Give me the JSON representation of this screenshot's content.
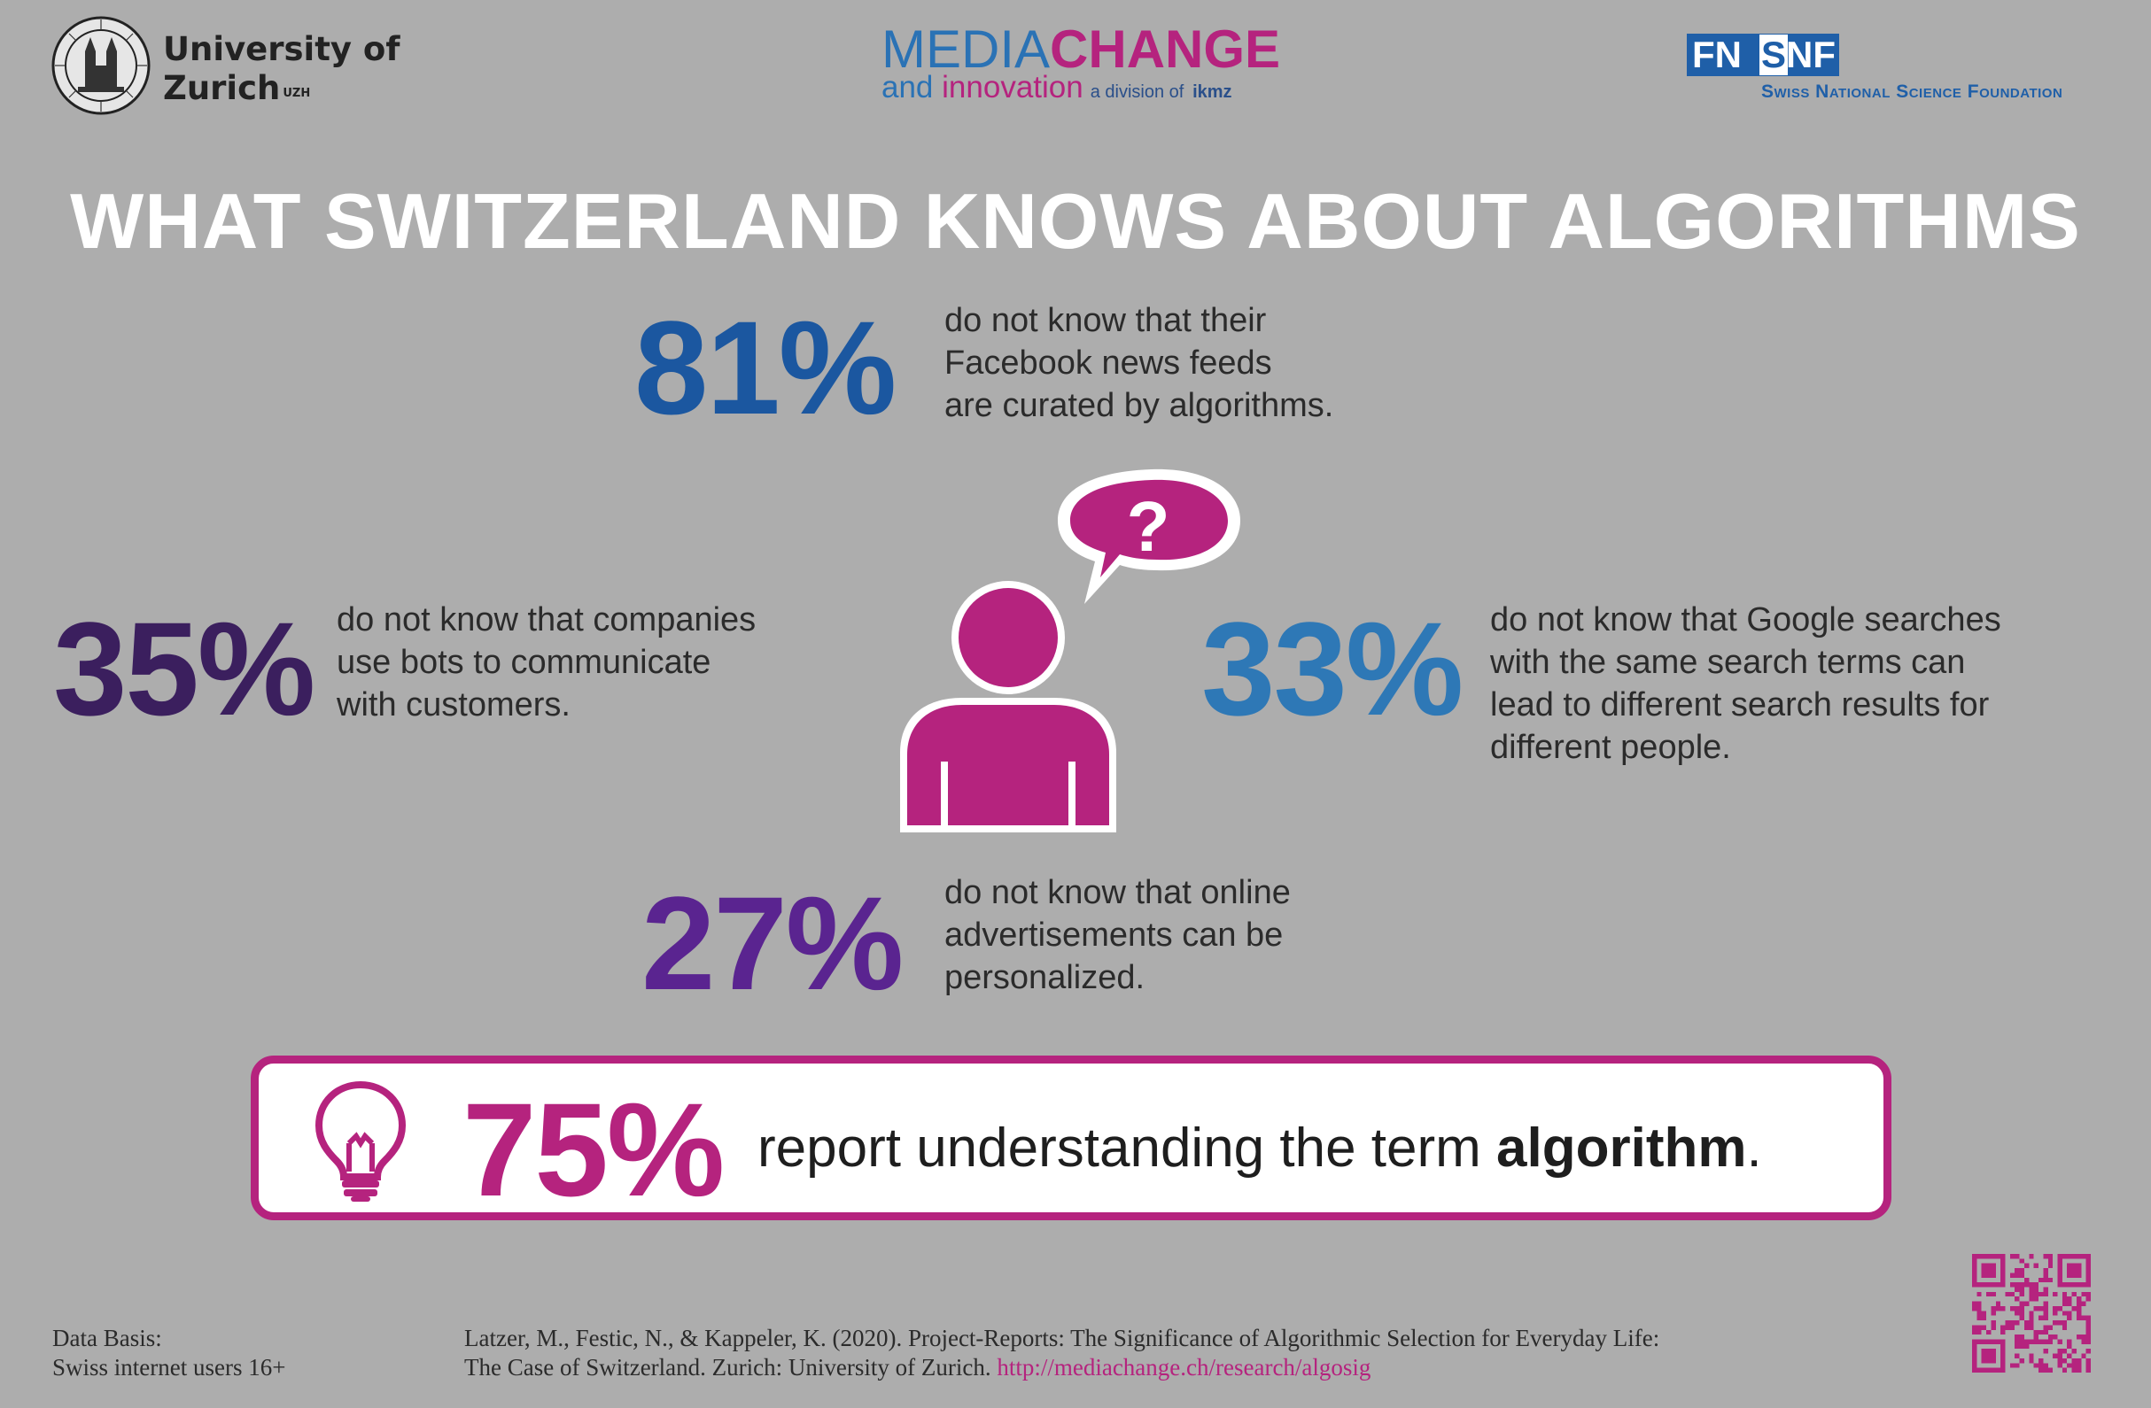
{
  "header": {
    "uzh": {
      "name_line1": "University of",
      "name_line2": "Zurich",
      "name_sup": "UZH"
    },
    "mediachange": {
      "media": "MEDIA",
      "change": "CHANGE",
      "and": "and",
      "innovation": "innovation",
      "division": "a division of",
      "ikmz": "ikmz"
    },
    "snf": {
      "fn": "FN",
      "s": "S",
      "nf": "NF",
      "caption": "Swiss National Science Foundation"
    }
  },
  "title": "WHAT SWITZERLAND KNOWS ABOUT ALGORITHMS",
  "stats": {
    "facebook": {
      "value": "81%",
      "lines": [
        "do not know that their",
        "Facebook news feeds",
        "are curated by algorithms."
      ],
      "color": "#1b57a0"
    },
    "bots": {
      "value": "35%",
      "lines": [
        "do not know that companies",
        "use bots to communicate",
        "with customers."
      ],
      "color": "#3b1f5e"
    },
    "google": {
      "value": "33%",
      "lines": [
        "do not know that Google searches",
        "with the same search terms can",
        "lead to different search results for",
        "different people."
      ],
      "color": "#2e78b6"
    },
    "ads": {
      "value": "27%",
      "lines": [
        "do not know that online",
        "advertisements can be",
        "personalized."
      ],
      "color": "#5a2490"
    }
  },
  "central_icon": {
    "name": "person-question-icon",
    "color": "#b5237e"
  },
  "highlight": {
    "value": "75%",
    "text_before": "report understanding the term ",
    "text_strong": "algorithm",
    "text_after": ".",
    "icon": "lightbulb-icon",
    "color": "#b5237e"
  },
  "footer": {
    "basis_line1": "Data Basis:",
    "basis_line2": "Swiss internet users 16+",
    "ref_line1": "Latzer, M., Festic, N., & Kappeler, K. (2020). Project-Reports: The Significance of Algorithmic Selection for Everyday Life:",
    "ref_line2": "The Case of Switzerland. Zurich: University of Zurich.",
    "link": "http://mediachange.ch/research/algosig",
    "qr_icon": "qr-code-icon"
  },
  "colors": {
    "background": "#adadad",
    "magenta": "#b5237e",
    "blue": "#1b57a0"
  }
}
